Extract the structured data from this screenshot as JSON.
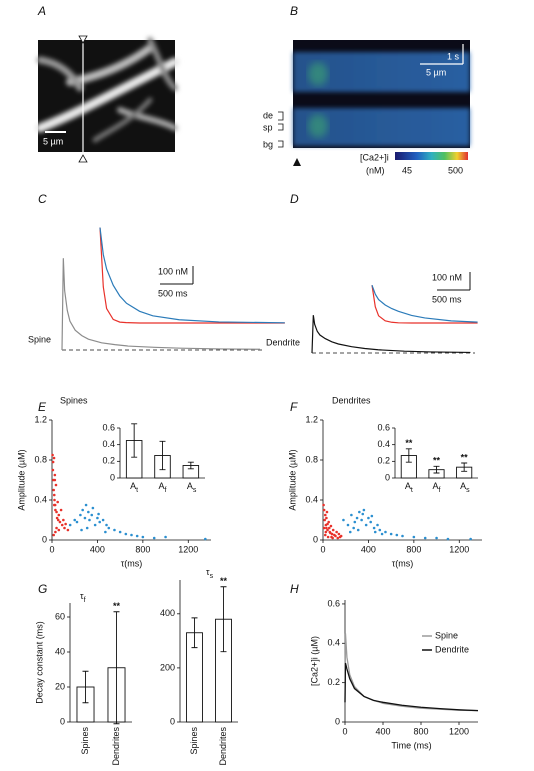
{
  "images": {
    "A": {
      "panel": "A",
      "scale_bar": "5 µm"
    },
    "B": {
      "panel": "B",
      "time_bar": "1 s",
      "space_bar": "5 µm",
      "rows": [
        "de",
        "sp",
        "bg"
      ],
      "colorbar_label": "[Ca2+]i",
      "colorbar_unit": "(nM)",
      "colorbar_ticks": [
        45,
        500
      ]
    }
  },
  "chart_data": [
    {
      "type": "trace",
      "panel": "C",
      "baseline": 0,
      "scale_bars": [
        {
          "value": 100,
          "label": "100 nM"
        },
        {
          "value": 500,
          "label": "500 ms"
        }
      ],
      "series": [
        {
          "name": "Spine",
          "color": "#8c8c8c",
          "x": [
            0,
            20,
            40,
            80,
            120,
            200,
            300,
            400,
            600,
            800,
            1000,
            1400,
            1800,
            2400,
            3000
          ],
          "values": [
            0,
            510,
            330,
            220,
            160,
            110,
            80,
            60,
            40,
            30,
            22,
            15,
            10,
            6,
            4
          ]
        },
        {
          "color": "#e8312a",
          "x": [
            0,
            50,
            100,
            200,
            300,
            400,
            600,
            800,
            1200,
            1800,
            2800
          ],
          "values": [
            530,
            200,
            80,
            20,
            5,
            2,
            0,
            0,
            0,
            0,
            0
          ]
        },
        {
          "color": "#2b7bb9",
          "x": [
            0,
            50,
            100,
            200,
            300,
            400,
            600,
            800,
            1200,
            1800,
            2800
          ],
          "values": [
            530,
            380,
            300,
            210,
            150,
            110,
            65,
            40,
            18,
            6,
            1
          ]
        }
      ]
    },
    {
      "type": "trace",
      "panel": "D",
      "baseline": 0,
      "scale_bars": [
        {
          "value": 100,
          "label": "100 nM"
        },
        {
          "value": 500,
          "label": "500 ms"
        }
      ],
      "series": [
        {
          "name": "Dendrite",
          "color": "#111111",
          "x": [
            0,
            20,
            40,
            80,
            120,
            200,
            300,
            400,
            600,
            800,
            1000,
            1400,
            1800,
            2400
          ],
          "values": [
            0,
            210,
            160,
            120,
            100,
            80,
            62,
            50,
            35,
            25,
            18,
            10,
            6,
            3
          ]
        },
        {
          "color": "#e8312a",
          "x": [
            0,
            50,
            100,
            200,
            300,
            400,
            600,
            800,
            1200,
            1600
          ],
          "values": [
            210,
            90,
            40,
            12,
            4,
            1,
            0,
            0,
            0,
            0
          ]
        },
        {
          "color": "#2b7bb9",
          "x": [
            0,
            50,
            100,
            200,
            300,
            400,
            600,
            800,
            1200,
            1600
          ],
          "values": [
            210,
            160,
            130,
            100,
            80,
            65,
            42,
            28,
            12,
            5
          ]
        }
      ]
    },
    {
      "type": "scatter",
      "panel": "E",
      "title": "Spines",
      "x_label": "τ(ms)",
      "y_label": "Amplitude (µM)",
      "xlim": [
        0,
        1400
      ],
      "ylim": [
        0,
        1.2
      ],
      "xticks": [
        0,
        400,
        800,
        1200
      ],
      "yticks": [
        0,
        0.4,
        0.8,
        1.2
      ],
      "series": [
        {
          "color": "#e8312a",
          "x": [
            5,
            8,
            10,
            12,
            15,
            18,
            20,
            22,
            25,
            28,
            30,
            35,
            40,
            45,
            50,
            55,
            60,
            70,
            80,
            90,
            100,
            110,
            120,
            140,
            30,
            15,
            25,
            40,
            60,
            20
          ],
          "values": [
            0.85,
            0.7,
            0.78,
            0.6,
            0.5,
            0.82,
            0.45,
            0.4,
            0.65,
            0.35,
            0.3,
            0.55,
            0.28,
            0.22,
            0.38,
            0.2,
            0.25,
            0.18,
            0.3,
            0.15,
            0.2,
            0.12,
            0.16,
            0.1,
            0.08,
            0.05,
            0.6,
            0.12,
            0.1,
            0.35
          ]
        },
        {
          "color": "#2b8fd0",
          "x": [
            160,
            200,
            220,
            250,
            270,
            290,
            300,
            320,
            330,
            350,
            360,
            380,
            400,
            420,
            450,
            480,
            500,
            550,
            600,
            650,
            700,
            750,
            800,
            900,
            1000,
            1350,
            310,
            260,
            410,
            470
          ],
          "values": [
            0.15,
            0.2,
            0.18,
            0.25,
            0.3,
            0.22,
            0.35,
            0.28,
            0.2,
            0.25,
            0.32,
            0.15,
            0.22,
            0.18,
            0.2,
            0.15,
            0.12,
            0.1,
            0.08,
            0.06,
            0.05,
            0.04,
            0.03,
            0.02,
            0.03,
            0.01,
            0.12,
            0.1,
            0.26,
            0.08
          ]
        }
      ]
    },
    {
      "type": "bar",
      "categories": [
        "At",
        "Af",
        "As"
      ],
      "values": [
        0.45,
        0.27,
        0.15
      ],
      "errors": [
        0.2,
        0.17,
        0.04
      ],
      "ylim": [
        0,
        0.6
      ],
      "yticks": [
        0,
        0.2,
        0.4,
        0.6
      ]
    },
    {
      "type": "scatter",
      "panel": "F",
      "title": "Dendrites",
      "x_label": "τ(ms)",
      "y_label": "Amplitude (µM)",
      "xlim": [
        0,
        1400
      ],
      "ylim": [
        0,
        1.2
      ],
      "xticks": [
        0,
        400,
        800,
        1200
      ],
      "yticks": [
        0,
        0.4,
        0.8,
        1.2
      ],
      "series": [
        {
          "color": "#e8312a",
          "x": [
            5,
            10,
            15,
            20,
            25,
            30,
            35,
            40,
            50,
            60,
            70,
            80,
            90,
            100,
            120,
            140,
            160,
            20,
            30,
            45,
            55,
            65,
            75,
            110,
            130,
            10,
            25,
            40,
            85,
            150
          ],
          "values": [
            0.35,
            0.3,
            0.2,
            0.25,
            0.15,
            0.12,
            0.28,
            0.1,
            0.18,
            0.08,
            0.14,
            0.06,
            0.1,
            0.05,
            0.08,
            0.06,
            0.04,
            0.05,
            0.22,
            0.03,
            0.12,
            0.07,
            0.03,
            0.04,
            0.02,
            0.12,
            0.08,
            0.16,
            0.02,
            0.03
          ]
        },
        {
          "color": "#2b8fd0",
          "x": [
            180,
            220,
            250,
            280,
            300,
            320,
            340,
            360,
            380,
            400,
            420,
            450,
            480,
            500,
            550,
            600,
            650,
            700,
            800,
            900,
            1000,
            1100,
            1300,
            350,
            310,
            430,
            460,
            270,
            520,
            240
          ],
          "values": [
            0.2,
            0.15,
            0.25,
            0.18,
            0.22,
            0.28,
            0.2,
            0.3,
            0.15,
            0.22,
            0.18,
            0.12,
            0.15,
            0.1,
            0.08,
            0.06,
            0.05,
            0.04,
            0.03,
            0.02,
            0.02,
            0.01,
            0.01,
            0.26,
            0.1,
            0.24,
            0.08,
            0.12,
            0.06,
            0.08
          ]
        }
      ]
    },
    {
      "type": "bar",
      "categories": [
        "At",
        "Af",
        "As"
      ],
      "values": [
        0.27,
        0.1,
        0.13
      ],
      "errors": [
        0.08,
        0.04,
        0.05
      ],
      "annotations": [
        "**",
        "**",
        "**"
      ],
      "ylim": [
        0,
        0.6
      ],
      "yticks": [
        0,
        0.2,
        0.4,
        0.6
      ]
    },
    {
      "type": "bar",
      "panel": "G",
      "title": "τf",
      "y_label": "Decay constant (ms)",
      "categories": [
        "Spines",
        "Dendrites"
      ],
      "values": [
        20,
        31
      ],
      "errors": [
        9,
        32
      ],
      "annotations": [
        null,
        "**"
      ],
      "ylim": [
        0,
        68
      ],
      "yticks": [
        0,
        20,
        40,
        60
      ]
    },
    {
      "type": "bar",
      "title": "τs",
      "categories": [
        "Spines",
        "Dendrites"
      ],
      "values": [
        330,
        380
      ],
      "errors": [
        55,
        120
      ],
      "annotations": [
        null,
        "**"
      ],
      "ylim": [
        0,
        525
      ],
      "yticks": [
        0,
        200,
        400
      ]
    },
    {
      "type": "line",
      "panel": "H",
      "x_label": "Time (ms)",
      "y_label": "[Ca2+]i (µM)",
      "x": [
        0,
        5,
        20,
        50,
        100,
        200,
        300,
        400,
        600,
        800,
        1000,
        1200,
        1400
      ],
      "xlim": [
        0,
        1400
      ],
      "xticks": [
        0,
        400,
        800,
        1200
      ],
      "ylim": [
        0,
        0.62
      ],
      "yticks": [
        0,
        0.2,
        0.4,
        0.6
      ],
      "legend": "upper right",
      "series": [
        {
          "name": "Spine",
          "color": "#9a9a9a",
          "values": [
            0.1,
            0.45,
            0.33,
            0.24,
            0.18,
            0.13,
            0.11,
            0.095,
            0.08,
            0.07,
            0.065,
            0.06,
            0.058
          ]
        },
        {
          "name": "Dendrite",
          "color": "#111111",
          "values": [
            0.1,
            0.3,
            0.27,
            0.22,
            0.17,
            0.13,
            0.11,
            0.1,
            0.085,
            0.075,
            0.068,
            0.062,
            0.058
          ]
        }
      ]
    }
  ]
}
